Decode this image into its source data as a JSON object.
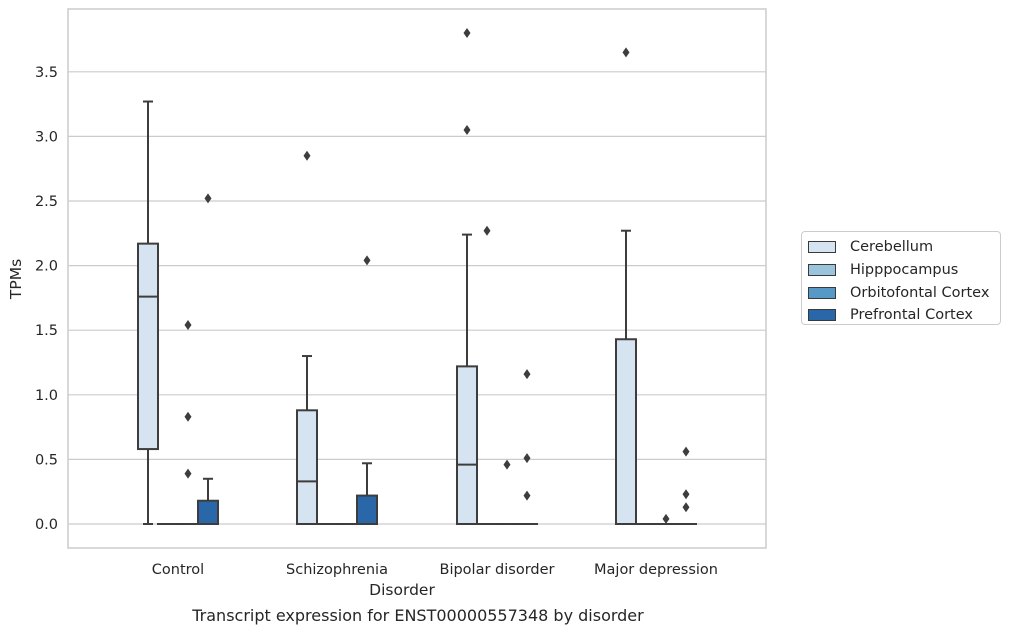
{
  "caption": "Transcript expression for ENST00000557348 by disorder",
  "chart_data": {
    "type": "box",
    "title": "",
    "xlabel": "Disorder",
    "ylabel": "TPMs",
    "ylim": [
      -0.18,
      3.98
    ],
    "yticks": [
      "0.0",
      "0.5",
      "1.0",
      "1.5",
      "2.0",
      "2.5",
      "3.0",
      "3.5"
    ],
    "grid": "horizontal",
    "legend_position": "right",
    "categories": [
      "Control",
      "Schizophrenia",
      "Bipolar disorder",
      "Major depression"
    ],
    "series": [
      {
        "name": "Cerebellum",
        "color": "#d6e4f2",
        "boxes": [
          {
            "category": "Control",
            "whisker_low": 0.0,
            "q1": 0.58,
            "median": 1.76,
            "q3": 2.17,
            "whisker_high": 3.27,
            "outliers": []
          },
          {
            "category": "Schizophrenia",
            "whisker_low": 0.0,
            "q1": 0.0,
            "median": 0.33,
            "q3": 0.88,
            "whisker_high": 1.3,
            "outliers": [
              2.85
            ]
          },
          {
            "category": "Bipolar disorder",
            "whisker_low": 0.0,
            "q1": 0.0,
            "median": 0.46,
            "q3": 1.22,
            "whisker_high": 2.24,
            "outliers": [
              3.05,
              3.8
            ]
          },
          {
            "category": "Major depression",
            "whisker_low": 0.0,
            "q1": 0.0,
            "median": 0.0,
            "q3": 1.43,
            "whisker_high": 2.27,
            "outliers": [
              3.65
            ]
          }
        ]
      },
      {
        "name": "Hipppocampus",
        "color": "#9ac3dc",
        "boxes": [
          {
            "category": "Control",
            "whisker_low": 0.0,
            "q1": 0.0,
            "median": 0.0,
            "q3": 0.0,
            "whisker_high": 0.0,
            "outliers": []
          },
          {
            "category": "Schizophrenia",
            "whisker_low": 0.0,
            "q1": 0.0,
            "median": 0.0,
            "q3": 0.0,
            "whisker_high": 0.0,
            "outliers": []
          },
          {
            "category": "Bipolar disorder",
            "whisker_low": 0.0,
            "q1": 0.0,
            "median": 0.0,
            "q3": 0.0,
            "whisker_high": 0.0,
            "outliers": [
              2.27
            ]
          },
          {
            "category": "Major depression",
            "whisker_low": 0.0,
            "q1": 0.0,
            "median": 0.0,
            "q3": 0.0,
            "whisker_high": 0.0,
            "outliers": []
          }
        ]
      },
      {
        "name": "Orbitofontal Cortex",
        "color": "#5699c6",
        "boxes": [
          {
            "category": "Control",
            "whisker_low": 0.0,
            "q1": 0.0,
            "median": 0.0,
            "q3": 0.0,
            "whisker_high": 0.0,
            "outliers": [
              0.39,
              0.83,
              1.54
            ]
          },
          {
            "category": "Schizophrenia",
            "whisker_low": 0.0,
            "q1": 0.0,
            "median": 0.0,
            "q3": 0.0,
            "whisker_high": 0.0,
            "outliers": []
          },
          {
            "category": "Bipolar disorder",
            "whisker_low": 0.0,
            "q1": 0.0,
            "median": 0.0,
            "q3": 0.0,
            "whisker_high": 0.0,
            "outliers": [
              0.46
            ]
          },
          {
            "category": "Major depression",
            "whisker_low": 0.0,
            "q1": 0.0,
            "median": 0.0,
            "q3": 0.0,
            "whisker_high": 0.0,
            "outliers": [
              0.04
            ]
          }
        ]
      },
      {
        "name": "Prefrontal Cortex",
        "color": "#2a67a8",
        "boxes": [
          {
            "category": "Control",
            "whisker_low": 0.0,
            "q1": 0.0,
            "median": 0.0,
            "q3": 0.18,
            "whisker_high": 0.35,
            "outliers": [
              2.52
            ]
          },
          {
            "category": "Schizophrenia",
            "whisker_low": 0.0,
            "q1": 0.0,
            "median": 0.0,
            "q3": 0.22,
            "whisker_high": 0.47,
            "outliers": [
              2.04
            ]
          },
          {
            "category": "Bipolar disorder",
            "whisker_low": 0.0,
            "q1": 0.0,
            "median": 0.0,
            "q3": 0.0,
            "whisker_high": 0.0,
            "outliers": [
              0.22,
              0.51,
              1.16
            ]
          },
          {
            "category": "Major depression",
            "whisker_low": 0.0,
            "q1": 0.0,
            "median": 0.0,
            "q3": 0.0,
            "whisker_high": 0.0,
            "outliers": [
              0.13,
              0.23,
              0.56
            ]
          }
        ]
      }
    ]
  }
}
